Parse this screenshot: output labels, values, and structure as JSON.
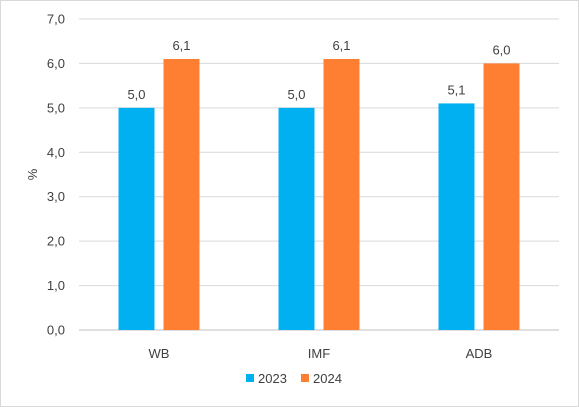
{
  "chart_data": {
    "type": "bar",
    "categories": [
      "WB",
      "IMF",
      "ADB"
    ],
    "series": [
      {
        "name": "2023",
        "values": [
          5.0,
          5.0,
          5.1
        ],
        "labels": [
          "5,0",
          "5,0",
          "5,1"
        ],
        "color": "#00b0f0"
      },
      {
        "name": "2024",
        "values": [
          6.1,
          6.1,
          6.0
        ],
        "labels": [
          "6,1",
          "6,1",
          "6,0"
        ],
        "color": "#ff7f32"
      }
    ],
    "ylabel": "%",
    "ylim": [
      0,
      7
    ],
    "yticks": [
      0,
      1,
      2,
      3,
      4,
      5,
      6,
      7
    ],
    "ytick_labels": [
      "0,0",
      "1,0",
      "2,0",
      "3,0",
      "4,0",
      "5,0",
      "6,0",
      "7,0"
    ],
    "grid": true,
    "legend_position": "bottom"
  }
}
